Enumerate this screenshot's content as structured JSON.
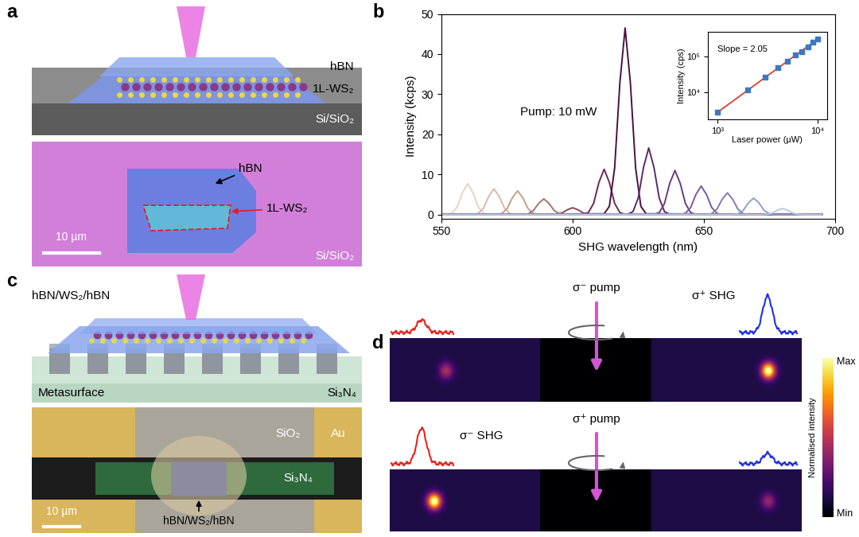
{
  "chart_data": [
    {
      "type": "line",
      "panel": "b",
      "x_label": "SHG wavelength (nm)",
      "y_label": "Intensity (kcps)",
      "annotations": [
        "Pump: 10 mW"
      ],
      "xlim": [
        550,
        700
      ],
      "xticks": [
        550,
        600,
        650,
        700
      ],
      "ylim": [
        -1,
        50
      ],
      "yticks": [
        0,
        10,
        20,
        30,
        40,
        50
      ],
      "series": [
        {
          "color": "#e6d3c8",
          "x": [
            550,
            552,
            554,
            556,
            558,
            560,
            562,
            564,
            566,
            568,
            695
          ],
          "values": [
            0,
            0.03,
            0.34,
            1.92,
            5.44,
            7.7,
            5.44,
            1.92,
            0.34,
            0.03,
            0
          ]
        },
        {
          "color": "#d9b8a8",
          "x": [
            550,
            562,
            564,
            566,
            568,
            570,
            572,
            574,
            576,
            578,
            695
          ],
          "values": [
            0,
            0.03,
            0.28,
            1.59,
            4.52,
            6.4,
            4.52,
            1.59,
            0.28,
            0.03,
            0
          ]
        },
        {
          "color": "#c79e8a",
          "x": [
            550,
            571,
            573,
            575,
            577,
            579,
            581,
            583,
            585,
            587,
            695
          ],
          "values": [
            0,
            0.02,
            0.26,
            1.47,
            4.17,
            5.9,
            4.17,
            1.47,
            0.26,
            0.02,
            0
          ]
        },
        {
          "color": "#a8716a",
          "x": [
            550,
            581,
            583,
            585,
            587,
            589,
            591,
            593,
            595,
            597,
            695
          ],
          "values": [
            0,
            0.02,
            0.17,
            0.97,
            2.76,
            3.9,
            2.76,
            0.97,
            0.17,
            0.02,
            0
          ]
        },
        {
          "color": "#8a4a58",
          "x": [
            550,
            592,
            594,
            596,
            598,
            600,
            602,
            604,
            606,
            608,
            695
          ],
          "values": [
            0,
            0.01,
            0.07,
            0.42,
            1.2,
            1.7,
            1.2,
            0.42,
            0.07,
            0.01,
            0
          ]
        },
        {
          "color": "#6a2a50",
          "x": [
            550,
            604,
            606,
            608,
            610,
            612,
            614,
            616,
            618,
            620,
            695
          ],
          "values": [
            0,
            0.05,
            0.5,
            2.81,
            7.99,
            11.3,
            7.99,
            2.81,
            0.5,
            0.05,
            0
          ]
        },
        {
          "color": "#4a1040",
          "x": [
            550,
            612,
            614,
            616,
            618,
            620,
            622,
            624,
            626,
            628,
            695
          ],
          "values": [
            0,
            0.19,
            2.05,
            11.58,
            32.88,
            46.5,
            32.88,
            11.58,
            2.05,
            0.19,
            0
          ]
        },
        {
          "color": "#5a2a6a",
          "x": [
            550,
            621,
            623,
            625,
            627,
            629,
            631,
            633,
            635,
            637,
            695
          ],
          "values": [
            0,
            0.07,
            0.73,
            4.13,
            11.74,
            16.6,
            11.74,
            4.13,
            0.73,
            0.07,
            0
          ]
        },
        {
          "color": "#6a3a80",
          "x": [
            550,
            631,
            633,
            635,
            637,
            639,
            641,
            643,
            645,
            647,
            695
          ],
          "values": [
            0,
            0.04,
            0.48,
            2.74,
            7.78,
            11.0,
            7.78,
            2.74,
            0.48,
            0.04,
            0
          ]
        },
        {
          "color": "#7a5a9a",
          "x": [
            550,
            641,
            643,
            645,
            647,
            649,
            651,
            653,
            655,
            657,
            695
          ],
          "values": [
            0,
            0.03,
            0.31,
            1.77,
            5.02,
            7.1,
            5.02,
            1.77,
            0.31,
            0.03,
            0
          ]
        },
        {
          "color": "#8a78b0",
          "x": [
            550,
            651,
            653,
            655,
            657,
            659,
            661,
            663,
            665,
            667,
            695
          ],
          "values": [
            0,
            0.02,
            0.24,
            1.34,
            3.82,
            5.4,
            3.82,
            1.34,
            0.24,
            0.02,
            0
          ]
        },
        {
          "color": "#8fa0c4",
          "x": [
            550,
            661,
            663,
            665,
            667,
            669,
            671,
            673,
            675,
            677,
            695
          ],
          "values": [
            0,
            0.02,
            0.18,
            1.02,
            2.9,
            4.1,
            2.9,
            1.02,
            0.18,
            0.02,
            0
          ]
        },
        {
          "color": "#b8cce0",
          "x": [
            550,
            672,
            674,
            676,
            678,
            680,
            682,
            684,
            686,
            688,
            695
          ],
          "values": [
            0,
            0.01,
            0.07,
            0.37,
            1.06,
            1.5,
            1.06,
            0.37,
            0.07,
            0.01,
            0
          ]
        }
      ]
    },
    {
      "type": "scatter",
      "x_label": "Laser power (µW)",
      "y_label": "Intensity (cps)",
      "log": true,
      "annotations": [
        "Slope = 2.05"
      ],
      "xlim": [
        800,
        12500
      ],
      "xticks": [
        {
          "value": 1000,
          "label": "10³"
        },
        {
          "value": 10000,
          "label": "10⁴"
        }
      ],
      "ylim": [
        1800,
        500000
      ],
      "yticks": [
        {
          "value": 10000,
          "label": "10⁴"
        },
        {
          "value": 100000,
          "label": "10⁵"
        }
      ],
      "series": [
        {
          "type": "scatter",
          "marker": "square",
          "color": "#3c78c0",
          "x": [
            1000,
            2000,
            3000,
            4000,
            5000,
            6000,
            7000,
            8000,
            9000,
            10000
          ],
          "values": [
            2800,
            12000,
            27000,
            50000,
            75000,
            110000,
            140000,
            190000,
            250000,
            310000
          ]
        },
        {
          "type": "line",
          "line_style": "solid",
          "color": "#e0301e",
          "x": [
            1000,
            10000
          ],
          "values": [
            2800,
            310000
          ]
        }
      ]
    }
  ],
  "panels": {
    "a": {
      "label": "a",
      "schematic": {
        "layers": [
          "hBN",
          "1L-WS₂",
          "Si/SiO₂"
        ]
      },
      "micrograph": {
        "flake_labels": [
          "hBN",
          "1L-WS₂"
        ],
        "scale_bar": "10 µm",
        "substrate": "Si/SiO₂"
      }
    },
    "c": {
      "label": "c",
      "schematic": {
        "stack": "hBN/WS₂/hBN",
        "layers": [
          "Metasurface",
          "Si₃N₄"
        ]
      },
      "micrograph": {
        "regions": [
          "SiO₂",
          "Au",
          "Si₃N₄"
        ],
        "flake": "hBN/WS₂/hBN",
        "scale_bar": "10 µm"
      }
    },
    "d": {
      "label": "d",
      "rows": [
        {
          "pump": "σ⁻ pump",
          "shg": "σ⁺ SHG"
        },
        {
          "pump": "σ⁺ pump",
          "shg": "σ⁻ SHG"
        }
      ],
      "colorbar": {
        "label": "Normalised intensity",
        "max": "Max",
        "min": "Min"
      }
    }
  }
}
